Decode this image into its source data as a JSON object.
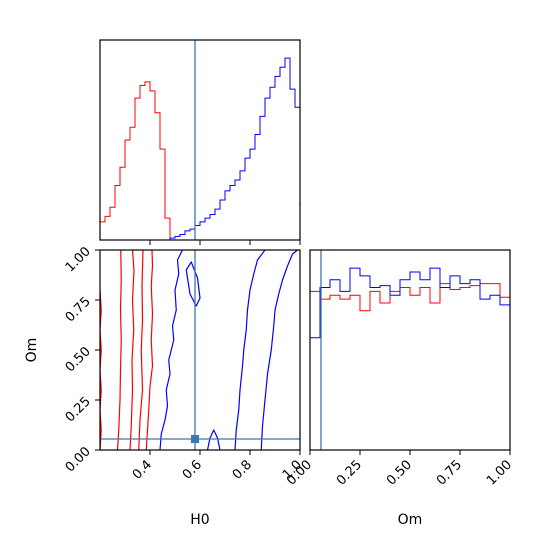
{
  "chart_data": {
    "type": "corner",
    "parameters": [
      "H0",
      "Om"
    ],
    "colors": {
      "series_a": "#ff0000",
      "series_b": "#0000ff",
      "truth": "#3b78b0",
      "axes": "#000000"
    },
    "truth": {
      "H0": 0.58,
      "Om": 0.055
    },
    "panels": [
      {
        "id": "hist_H0",
        "type": "step-histogram",
        "xlim": [
          0.2,
          1.0
        ],
        "bin_width": 0.02,
        "x_ticks_shown": false,
        "series": [
          {
            "color": "series_a",
            "bin_start": 0.2,
            "density": [
              0.1,
              0.13,
              0.18,
              0.3,
              0.4,
              0.55,
              0.62,
              0.78,
              0.85,
              0.87,
              0.82,
              0.7,
              0.5,
              0.12
            ]
          },
          {
            "color": "series_b",
            "bin_start": 0.2,
            "density": [
              0,
              0,
              0,
              0,
              0,
              0,
              0,
              0,
              0,
              0,
              0,
              0,
              0,
              0,
              0.01,
              0.02,
              0.03,
              0.05,
              0.06,
              0.08,
              0.1,
              0.12,
              0.14,
              0.17,
              0.22,
              0.27,
              0.3,
              0.33,
              0.38,
              0.45,
              0.5,
              0.58,
              0.68,
              0.78,
              0.84,
              0.9,
              0.95,
              1.0,
              0.83,
              0.73,
              0.63,
              0.52,
              0.38,
              0.2,
              0.08,
              0.05,
              0.0
            ]
          }
        ]
      },
      {
        "id": "contour_H0_Om",
        "type": "contour",
        "xlabel": "H0",
        "ylabel": "Om",
        "xlim": [
          0.2,
          1.0
        ],
        "ylim": [
          0.0,
          1.0
        ],
        "x_ticks": [
          0.4,
          0.6,
          0.8,
          1.0
        ],
        "x_tick_labels": [
          "0.4",
          "0.6",
          "0.8",
          "1.0"
        ],
        "y_ticks": [
          0.0,
          0.25,
          0.5,
          0.75,
          1.0
        ],
        "y_tick_labels": [
          "0.00",
          "0.25",
          "0.50",
          "0.75",
          "1.00"
        ],
        "contours": [
          {
            "color": "series_a",
            "closed": false,
            "points": [
              [
                0.27,
                0.0
              ],
              [
                0.275,
                0.1
              ],
              [
                0.28,
                0.25
              ],
              [
                0.282,
                0.4
              ],
              [
                0.285,
                0.55
              ],
              [
                0.282,
                0.7
              ],
              [
                0.285,
                0.85
              ],
              [
                0.283,
                1.0
              ]
            ]
          },
          {
            "color": "series_a",
            "closed": false,
            "points": [
              [
                0.32,
                0.0
              ],
              [
                0.325,
                0.12
              ],
              [
                0.33,
                0.3
              ],
              [
                0.328,
                0.45
              ],
              [
                0.335,
                0.6
              ],
              [
                0.33,
                0.75
              ],
              [
                0.336,
                0.9
              ],
              [
                0.33,
                1.0
              ]
            ]
          },
          {
            "color": "series_a",
            "closed": false,
            "points": [
              [
                0.355,
                0.0
              ],
              [
                0.36,
                0.15
              ],
              [
                0.37,
                0.3
              ],
              [
                0.365,
                0.5
              ],
              [
                0.37,
                0.65
              ],
              [
                0.368,
                0.82
              ],
              [
                0.372,
                1.0
              ]
            ]
          },
          {
            "color": "series_a",
            "closed": false,
            "points": [
              [
                0.385,
                0.0
              ],
              [
                0.39,
                0.1
              ],
              [
                0.395,
                0.2
              ],
              [
                0.4,
                0.32
              ],
              [
                0.41,
                0.42
              ],
              [
                0.405,
                0.55
              ],
              [
                0.41,
                0.68
              ],
              [
                0.405,
                0.82
              ],
              [
                0.41,
                0.92
              ],
              [
                0.408,
                1.0
              ]
            ]
          },
          {
            "color": "series_a",
            "closed": false,
            "points": [
              [
                0.2,
                0.8
              ],
              [
                0.205,
                0.7
              ],
              [
                0.2,
                0.6
              ],
              [
                0.205,
                0.5
              ],
              [
                0.2,
                0.4
              ],
              [
                0.205,
                0.3
              ],
              [
                0.2,
                0.2
              ],
              [
                0.205,
                0.1
              ],
              [
                0.2,
                0.0
              ]
            ]
          },
          {
            "color": "series_b",
            "closed": false,
            "points": [
              [
                0.44,
                0.0
              ],
              [
                0.445,
                0.08
              ],
              [
                0.46,
                0.15
              ],
              [
                0.47,
                0.22
              ],
              [
                0.465,
                0.3
              ],
              [
                0.48,
                0.38
              ],
              [
                0.475,
                0.45
              ],
              [
                0.495,
                0.55
              ],
              [
                0.49,
                0.62
              ],
              [
                0.505,
                0.7
              ],
              [
                0.5,
                0.8
              ],
              [
                0.515,
                0.88
              ],
              [
                0.51,
                0.95
              ],
              [
                0.53,
                1.0
              ]
            ]
          },
          {
            "color": "series_b",
            "closed": false,
            "points": [
              [
                0.74,
                0.0
              ],
              [
                0.745,
                0.1
              ],
              [
                0.755,
                0.2
              ],
              [
                0.76,
                0.3
              ],
              [
                0.77,
                0.42
              ],
              [
                0.775,
                0.5
              ],
              [
                0.785,
                0.6
              ],
              [
                0.79,
                0.7
              ],
              [
                0.8,
                0.8
              ],
              [
                0.815,
                0.88
              ],
              [
                0.83,
                0.95
              ],
              [
                0.86,
                1.0
              ]
            ]
          },
          {
            "color": "series_b",
            "closed": false,
            "points": [
              [
                0.845,
                0.0
              ],
              [
                0.85,
                0.12
              ],
              [
                0.86,
                0.25
              ],
              [
                0.87,
                0.38
              ],
              [
                0.885,
                0.5
              ],
              [
                0.895,
                0.62
              ],
              [
                0.9,
                0.7
              ],
              [
                0.915,
                0.78
              ],
              [
                0.93,
                0.85
              ],
              [
                0.95,
                0.92
              ],
              [
                0.97,
                0.98
              ],
              [
                0.99,
                1.0
              ]
            ]
          },
          {
            "color": "series_b",
            "closed": true,
            "points": [
              [
                0.545,
                0.9
              ],
              [
                0.56,
                0.78
              ],
              [
                0.585,
                0.72
              ],
              [
                0.6,
                0.76
              ],
              [
                0.59,
                0.86
              ],
              [
                0.565,
                0.94
              ]
            ]
          },
          {
            "color": "series_b",
            "closed": false,
            "points": [
              [
                0.63,
                0.0
              ],
              [
                0.64,
                0.06
              ],
              [
                0.655,
                0.1
              ],
              [
                0.67,
                0.06
              ],
              [
                0.68,
                0.0
              ]
            ]
          }
        ]
      },
      {
        "id": "hist_Om",
        "type": "step-histogram",
        "xlabel": "Om",
        "xlim": [
          0.0,
          1.0
        ],
        "bin_width": 0.05,
        "x_ticks": [
          0.0,
          0.25,
          0.5,
          0.75,
          1.0
        ],
        "x_tick_labels": [
          "0.00",
          "0.25",
          "0.50",
          "0.75",
          "1.00"
        ],
        "series": [
          {
            "color": "series_a",
            "bin_start": 0.0,
            "density": [
              0.82,
              0.78,
              0.8,
              0.78,
              0.8,
              0.72,
              0.82,
              0.76,
              0.82,
              0.84,
              0.8,
              0.84,
              0.76,
              0.86,
              0.83,
              0.84,
              0.85,
              0.86,
              0.86,
              0.79,
              0.78
            ]
          },
          {
            "color": "series_b",
            "bin_start": 0.0,
            "density": [
              0.58,
              0.84,
              0.88,
              0.82,
              0.94,
              0.9,
              0.84,
              0.85,
              0.8,
              0.88,
              0.92,
              0.88,
              0.94,
              0.84,
              0.9,
              0.86,
              0.88,
              0.78,
              0.8,
              0.75,
              0.4
            ]
          }
        ]
      }
    ]
  }
}
